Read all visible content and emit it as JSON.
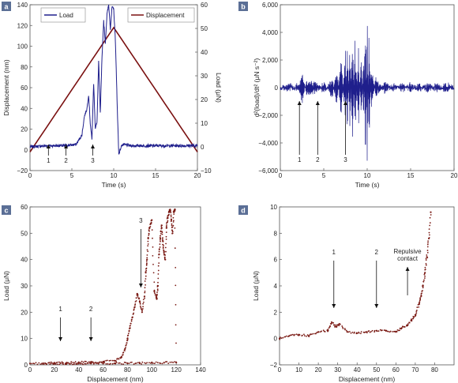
{
  "colors": {
    "load": "#1f1f8c",
    "displacement": "#7a1010",
    "dots": "#7a1a14",
    "panel_label_bg": "#5b6f96"
  },
  "chart_data": [
    {
      "panel": "a",
      "type": "line",
      "xlabel": "Time (s)",
      "ylabel": "Displacement (nm)",
      "ylabel_right": "Load (μN)",
      "xlim": [
        0,
        20
      ],
      "ylim": [
        -20,
        140
      ],
      "ylim_right": [
        -10,
        60
      ],
      "xticks": [
        0,
        5,
        10,
        15,
        20
      ],
      "yticks": [
        -20,
        0,
        20,
        40,
        60,
        80,
        100,
        120,
        140
      ],
      "yticks_right": [
        -10,
        0,
        10,
        20,
        30,
        40,
        50,
        60
      ],
      "legend_position": "top",
      "annotations": [
        {
          "label": "1",
          "x": 2.2
        },
        {
          "label": "2",
          "x": 4.3
        },
        {
          "label": "3",
          "x": 7.5
        }
      ],
      "series": [
        {
          "name": "Displacement",
          "axis": "left",
          "x": [
            0,
            1,
            2,
            3,
            4,
            5,
            6,
            7,
            8,
            9,
            10,
            11,
            12,
            13,
            14,
            15,
            16,
            17,
            18,
            19,
            20
          ],
          "y": [
            -2,
            10,
            22,
            34,
            46,
            58,
            70,
            82,
            94,
            106,
            118,
            106,
            94,
            82,
            70,
            58,
            46,
            34,
            22,
            10,
            -2
          ]
        },
        {
          "name": "Load",
          "axis": "right",
          "x": [
            0,
            2,
            4,
            5.5,
            6.2,
            6.5,
            6.8,
            7.0,
            7.2,
            7.4,
            7.6,
            7.8,
            8.0,
            8.2,
            8.4,
            8.6,
            8.8,
            9.0,
            9.2,
            9.4,
            9.6,
            9.8,
            10.0,
            10.2,
            10.4,
            10.6,
            10.8,
            11,
            12,
            14,
            16,
            18,
            20
          ],
          "y": [
            0,
            0.5,
            0.5,
            1,
            5,
            13,
            16,
            22,
            10,
            3,
            27,
            8,
            10,
            36,
            14,
            38,
            53,
            44,
            56,
            60,
            50,
            59,
            58,
            45,
            20,
            -3,
            -1,
            1,
            0.5,
            0.5,
            0.5,
            0.5,
            0.5
          ]
        }
      ]
    },
    {
      "panel": "b",
      "type": "line",
      "xlabel": "Time (s)",
      "ylabel": "d²(load)/dt² (μN s⁻²)",
      "xlim": [
        0,
        20
      ],
      "ylim": [
        -6000,
        6000
      ],
      "xticks": [
        0,
        5,
        10,
        15,
        20
      ],
      "yticks": [
        -6000,
        -4000,
        -2000,
        0,
        2000,
        4000,
        6000
      ],
      "ytick_labels": [
        "−6,000",
        "−4,000",
        "−2,000",
        "0",
        "2,000",
        "4,000",
        "6,000"
      ],
      "annotations": [
        {
          "label": "1",
          "x": 2.2
        },
        {
          "label": "2",
          "x": 4.3
        },
        {
          "label": "3",
          "x": 7.5
        }
      ],
      "series": [
        {
          "x": [
            0,
            1,
            2,
            2.5,
            3,
            4,
            5,
            6,
            6.5,
            7,
            7.5,
            7.7,
            8,
            8.3,
            8.6,
            9,
            9.3,
            9.6,
            9.8,
            10,
            10.2,
            10.5,
            11,
            12,
            13,
            14,
            15,
            16,
            17,
            18,
            19,
            20
          ],
          "y": [
            0,
            300,
            -300,
            1100,
            -500,
            -400,
            400,
            -800,
            1500,
            -2200,
            2800,
            -3500,
            3200,
            -4200,
            3500,
            -3000,
            2600,
            -2200,
            5800,
            -5500,
            4200,
            -1500,
            800,
            -400,
            300,
            -300,
            300,
            -300,
            300,
            -300,
            300,
            0
          ]
        }
      ]
    },
    {
      "panel": "c",
      "type": "scatter",
      "xlabel": "Displacement (nm)",
      "ylabel": "Load (μN)",
      "xlim": [
        0,
        140
      ],
      "ylim": [
        0,
        60
      ],
      "xticks": [
        0,
        20,
        40,
        60,
        80,
        100,
        120,
        140
      ],
      "yticks": [
        0,
        10,
        20,
        30,
        40,
        50,
        60
      ],
      "annotations": [
        {
          "label": "1",
          "x": 25
        },
        {
          "label": "2",
          "x": 50
        },
        {
          "label": "3",
          "x": 91
        }
      ],
      "series": [
        {
          "x": [
            0,
            10,
            20,
            30,
            40,
            50,
            60,
            70,
            75,
            78,
            80,
            82,
            84,
            86,
            88,
            90,
            92,
            94,
            95,
            96,
            97,
            98,
            100,
            102,
            104,
            105,
            106,
            107,
            108,
            109,
            110,
            111,
            112,
            113,
            114,
            115,
            116,
            117,
            118,
            119,
            120,
            110,
            100,
            90,
            80,
            70,
            60,
            50,
            40,
            30,
            20,
            10
          ],
          "y": [
            0.5,
            0.5,
            0.8,
            0.8,
            1,
            1,
            1.2,
            1.5,
            3,
            6,
            10,
            14,
            18,
            22,
            27,
            24,
            20,
            26,
            35,
            40,
            48,
            52,
            55,
            28,
            25,
            30,
            42,
            48,
            53,
            47,
            43,
            40,
            52,
            56,
            58,
            59,
            55,
            50,
            58,
            59,
            1,
            0.8,
            0.8,
            0.6,
            0.6,
            0.6,
            0.5,
            0.5,
            0.5,
            0.5,
            0.5,
            0.5
          ]
        }
      ]
    },
    {
      "panel": "d",
      "type": "scatter",
      "xlabel": "Displacement (nm)",
      "ylabel": "Load (μN)",
      "xlim": [
        0,
        90
      ],
      "ylim": [
        -2,
        10
      ],
      "xticks": [
        0,
        10,
        20,
        30,
        40,
        50,
        60,
        70,
        80
      ],
      "yticks": [
        -2,
        0,
        2,
        4,
        6,
        8,
        10
      ],
      "annotations": [
        {
          "label": "1",
          "x": 28
        },
        {
          "label": "2",
          "x": 50
        },
        {
          "label": "Repulsive\ncontact",
          "x": 66
        }
      ],
      "series": [
        {
          "x": [
            0,
            5,
            10,
            15,
            20,
            25,
            27,
            29,
            31,
            35,
            40,
            45,
            50,
            55,
            60,
            63,
            66,
            68,
            70,
            72,
            73,
            74,
            75,
            76,
            77,
            78
          ],
          "y": [
            0,
            0.2,
            0.3,
            0.2,
            0.5,
            0.6,
            1.2,
            0.9,
            1.1,
            0.5,
            0.4,
            0.5,
            0.6,
            0.6,
            0.5,
            0.8,
            1.0,
            1.4,
            1.8,
            2.6,
            3.2,
            4.0,
            5.0,
            6.2,
            7.6,
            9.6
          ]
        }
      ]
    }
  ]
}
